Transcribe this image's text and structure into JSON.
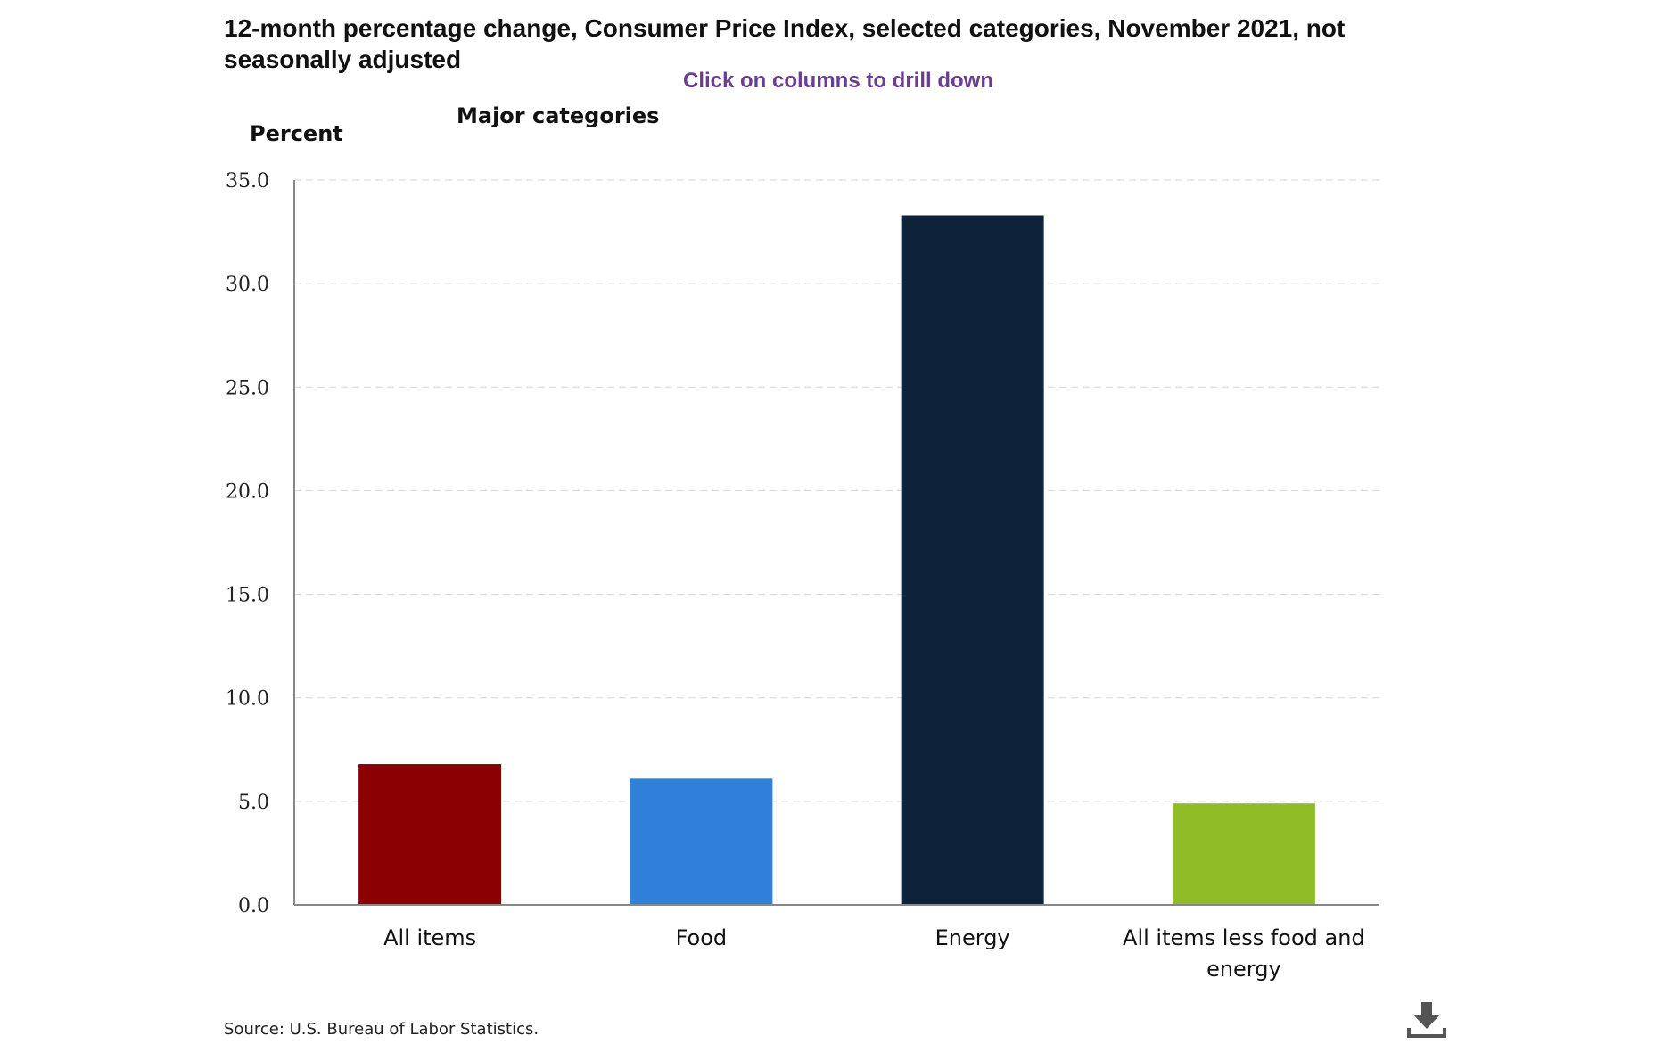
{
  "chart_data": {
    "type": "bar",
    "title": "12-month percentage change, Consumer Price Index, selected categories, November 2021, not seasonally adjusted",
    "subtitle": "Major categories",
    "instruction": "Click on columns to drill down",
    "ylabel": "Percent",
    "xlabel": "",
    "ylim": [
      0,
      35
    ],
    "yticks": [
      "0.0",
      "5.0",
      "10.0",
      "15.0",
      "20.0",
      "25.0",
      "30.0",
      "35.0"
    ],
    "grid": true,
    "categories": [
      {
        "lines": [
          "All items"
        ]
      },
      {
        "lines": [
          "Food"
        ]
      },
      {
        "lines": [
          "Energy"
        ]
      },
      {
        "lines": [
          "All items less food and",
          "energy"
        ]
      }
    ],
    "values": [
      6.8,
      6.1,
      33.3,
      4.9
    ],
    "colors": [
      "#8b0000",
      "#2f80d9",
      "#0e223a",
      "#8fbc27"
    ]
  },
  "source": "Source: U.S. Bureau of Labor Statistics.",
  "download_icon": "download-icon"
}
